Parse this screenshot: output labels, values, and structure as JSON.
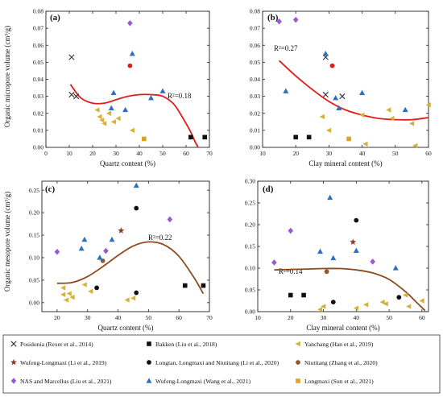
{
  "figure": {
    "background": "#ffffff",
    "trend_color": "#e21b1b",
    "trend_color_brown": "#8c4a1e"
  },
  "legend": [
    {
      "label": "Posidonia (Rexer et al., 2014)",
      "marker": "x",
      "color": "#333333"
    },
    {
      "label": "Bakken (Liu et al., 2018)",
      "marker": "square",
      "color": "#111111"
    },
    {
      "label": "Yanchang (Han et al., 2019)",
      "marker": "tri-left",
      "color": "#d4b23a"
    },
    {
      "label": "Wufeng-Longmaxi (Li et al., 2019)",
      "marker": "star",
      "color": "#8c3d2a"
    },
    {
      "label": "Longtan, Longmaxi and Niutitang (Li et al., 2020)",
      "marker": "circle",
      "color": "#111111"
    },
    {
      "label": "Niutitang (Zhang et al., 2020)",
      "marker": "circle",
      "color": "#8c5a2b"
    },
    {
      "label": "NAS and Marcellus (Liu et al., 2021)",
      "marker": "diamond",
      "color": "#9b59d0"
    },
    {
      "label": "Wufeng-Longmaxi (Wang et al., 2021)",
      "marker": "triangle",
      "color": "#2e6fbf"
    },
    {
      "label": "Longmaxi (Sun et al., 2021)",
      "marker": "square",
      "color": "#e0a020"
    }
  ],
  "chart_data": [
    {
      "panel": "(a)",
      "type": "scatter",
      "xlabel": "Quartz content (%)",
      "ylabel": "Organic micropore volume (cm³/g)",
      "xlim": [
        0,
        70
      ],
      "ylim": [
        0,
        0.08
      ],
      "xticks": [
        "0",
        "10",
        "20",
        "30",
        "40",
        "50",
        "60",
        "70"
      ],
      "yticks": [
        "0.00",
        "0.01",
        "0.02",
        "0.03",
        "0.04",
        "0.05",
        "0.06",
        "0.07",
        "0.08"
      ],
      "annotation": "R²=0.18",
      "trend_color": "#e21b1b",
      "trend_x": [
        10.5,
        15,
        20,
        25,
        30,
        35,
        40,
        45,
        50,
        55,
        60,
        62,
        64,
        66,
        68
      ],
      "trend_y": [
        0.037,
        0.029,
        0.026,
        0.026,
        0.028,
        0.03,
        0.031,
        0.031,
        0.03,
        0.025,
        0.014,
        0.009,
        0.003,
        -0.002,
        -0.007
      ],
      "points": [
        {
          "x": 11,
          "y": 0.053,
          "m": "x",
          "c": "#333333"
        },
        {
          "x": 11,
          "y": 0.031,
          "m": "x",
          "c": "#333333"
        },
        {
          "x": 13,
          "y": 0.03,
          "m": "x",
          "c": "#333333"
        },
        {
          "x": 62,
          "y": 0.006,
          "m": "square",
          "c": "#111111"
        },
        {
          "x": 68,
          "y": 0.006,
          "m": "square",
          "c": "#111111"
        },
        {
          "x": 22,
          "y": 0.022,
          "m": "tri-left",
          "c": "#d4b23a"
        },
        {
          "x": 23,
          "y": 0.018,
          "m": "tri-left",
          "c": "#d4b23a"
        },
        {
          "x": 24,
          "y": 0.016,
          "m": "tri-left",
          "c": "#d4b23a"
        },
        {
          "x": 25,
          "y": 0.014,
          "m": "tri-left",
          "c": "#d4b23a"
        },
        {
          "x": 27,
          "y": 0.02,
          "m": "tri-left",
          "c": "#d4b23a"
        },
        {
          "x": 29,
          "y": 0.015,
          "m": "tri-left",
          "c": "#d4b23a"
        },
        {
          "x": 31,
          "y": 0.017,
          "m": "tri-left",
          "c": "#d4b23a"
        },
        {
          "x": 37,
          "y": 0.01,
          "m": "tri-left",
          "c": "#d4b23a"
        },
        {
          "x": 36,
          "y": 0.048,
          "m": "circle",
          "c": "#e21b1b"
        },
        {
          "x": 36,
          "y": 0.073,
          "m": "diamond",
          "c": "#9b59d0"
        },
        {
          "x": 28,
          "y": 0.023,
          "m": "triangle",
          "c": "#2e6fbf"
        },
        {
          "x": 29,
          "y": 0.032,
          "m": "triangle",
          "c": "#2e6fbf"
        },
        {
          "x": 34,
          "y": 0.022,
          "m": "triangle",
          "c": "#2e6fbf"
        },
        {
          "x": 37,
          "y": 0.055,
          "m": "triangle",
          "c": "#2e6fbf"
        },
        {
          "x": 45,
          "y": 0.029,
          "m": "triangle",
          "c": "#2e6fbf"
        },
        {
          "x": 50,
          "y": 0.033,
          "m": "triangle",
          "c": "#2e6fbf"
        },
        {
          "x": 42,
          "y": 0.005,
          "m": "square",
          "c": "#e0a020"
        }
      ]
    },
    {
      "panel": "(b)",
      "type": "scatter",
      "xlabel": "Clay mineral content (%)",
      "ylabel": "",
      "xlim": [
        10,
        60
      ],
      "ylim": [
        0,
        0.08
      ],
      "xticks": [
        "10",
        "20",
        "30",
        "40",
        "50",
        "60"
      ],
      "yticks": [
        "0.00",
        "0.01",
        "0.02",
        "0.03",
        "0.04",
        "0.05",
        "0.06",
        "0.07",
        "0.08"
      ],
      "annotation": "R²=0.27",
      "trend_color": "#e21b1b",
      "trend_x": [
        15,
        20,
        25,
        30,
        35,
        40,
        45,
        50,
        55,
        60
      ],
      "trend_y": [
        0.051,
        0.042,
        0.034,
        0.027,
        0.022,
        0.019,
        0.017,
        0.0163,
        0.0163,
        0.0175
      ],
      "points": [
        {
          "x": 29,
          "y": 0.031,
          "m": "x",
          "c": "#333333"
        },
        {
          "x": 29,
          "y": 0.053,
          "m": "x",
          "c": "#333333"
        },
        {
          "x": 34,
          "y": 0.03,
          "m": "x",
          "c": "#333333"
        },
        {
          "x": 20,
          "y": 0.006,
          "m": "square",
          "c": "#111111"
        },
        {
          "x": 24,
          "y": 0.006,
          "m": "square",
          "c": "#111111"
        },
        {
          "x": 28,
          "y": 0.018,
          "m": "tri-left",
          "c": "#d4b23a"
        },
        {
          "x": 30,
          "y": 0.01,
          "m": "tri-left",
          "c": "#d4b23a"
        },
        {
          "x": 40,
          "y": 0.019,
          "m": "tri-left",
          "c": "#d4b23a"
        },
        {
          "x": 41,
          "y": 0.002,
          "m": "tri-left",
          "c": "#d4b23a"
        },
        {
          "x": 48,
          "y": 0.022,
          "m": "tri-left",
          "c": "#d4b23a"
        },
        {
          "x": 49,
          "y": 0.017,
          "m": "tri-left",
          "c": "#d4b23a"
        },
        {
          "x": 55,
          "y": 0.014,
          "m": "tri-left",
          "c": "#d4b23a"
        },
        {
          "x": 56,
          "y": 0.001,
          "m": "tri-left",
          "c": "#d4b23a"
        },
        {
          "x": 60,
          "y": 0.025,
          "m": "tri-left",
          "c": "#d4b23a"
        },
        {
          "x": 31,
          "y": 0.048,
          "m": "circle",
          "c": "#e21b1b"
        },
        {
          "x": 15,
          "y": 0.074,
          "m": "diamond",
          "c": "#9b59d0"
        },
        {
          "x": 20,
          "y": 0.075,
          "m": "diamond",
          "c": "#9b59d0"
        },
        {
          "x": 17,
          "y": 0.033,
          "m": "triangle",
          "c": "#2e6fbf"
        },
        {
          "x": 29,
          "y": 0.055,
          "m": "triangle",
          "c": "#2e6fbf"
        },
        {
          "x": 32,
          "y": 0.029,
          "m": "triangle",
          "c": "#2e6fbf"
        },
        {
          "x": 33,
          "y": 0.023,
          "m": "triangle",
          "c": "#2e6fbf"
        },
        {
          "x": 40,
          "y": 0.032,
          "m": "triangle",
          "c": "#2e6fbf"
        },
        {
          "x": 53,
          "y": 0.022,
          "m": "triangle",
          "c": "#2e6fbf"
        },
        {
          "x": 36,
          "y": 0.005,
          "m": "square",
          "c": "#e0a020"
        }
      ]
    },
    {
      "panel": "(c)",
      "type": "scatter",
      "xlabel": "Quartz content (%)",
      "ylabel": "Organic mesopore volume (cm³/g)",
      "xlim": [
        15,
        70
      ],
      "ylim": [
        -0.02,
        0.27
      ],
      "xticks": [
        "20",
        "30",
        "40",
        "50",
        "60",
        "70"
      ],
      "yticks": [
        "0.00",
        "0.05",
        "0.10",
        "0.15",
        "0.20",
        "0.25"
      ],
      "annotation": "R²=0.22",
      "trend_color": "#8c4a1e",
      "trend_x": [
        20,
        25,
        30,
        35,
        40,
        45,
        50,
        55,
        60,
        65,
        68
      ],
      "trend_y": [
        0.043,
        0.045,
        0.058,
        0.08,
        0.105,
        0.126,
        0.135,
        0.129,
        0.103,
        0.055,
        0.02
      ],
      "points": [
        {
          "x": 62,
          "y": 0.038,
          "m": "square",
          "c": "#111111"
        },
        {
          "x": 68,
          "y": 0.038,
          "m": "square",
          "c": "#111111"
        },
        {
          "x": 22,
          "y": 0.033,
          "m": "tri-left",
          "c": "#d4b23a"
        },
        {
          "x": 22,
          "y": 0.018,
          "m": "tri-left",
          "c": "#d4b23a"
        },
        {
          "x": 23,
          "y": 0.006,
          "m": "tri-left",
          "c": "#d4b23a"
        },
        {
          "x": 24,
          "y": 0.02,
          "m": "tri-left",
          "c": "#d4b23a"
        },
        {
          "x": 25,
          "y": 0.012,
          "m": "tri-left",
          "c": "#d4b23a"
        },
        {
          "x": 29,
          "y": 0.04,
          "m": "tri-left",
          "c": "#d4b23a"
        },
        {
          "x": 31,
          "y": 0.025,
          "m": "tri-left",
          "c": "#d4b23a"
        },
        {
          "x": 43,
          "y": 0.006,
          "m": "tri-left",
          "c": "#d4b23a"
        },
        {
          "x": 45,
          "y": 0.01,
          "m": "tri-left",
          "c": "#d4b23a"
        },
        {
          "x": 41,
          "y": 0.16,
          "m": "star",
          "c": "#8c3d2a"
        },
        {
          "x": 33,
          "y": 0.033,
          "m": "circle",
          "c": "#111111"
        },
        {
          "x": 46,
          "y": 0.21,
          "m": "circle",
          "c": "#111111"
        },
        {
          "x": 46,
          "y": 0.022,
          "m": "circle",
          "c": "#111111"
        },
        {
          "x": 35,
          "y": 0.093,
          "m": "circle",
          "c": "#8c5a2b"
        },
        {
          "x": 20,
          "y": 0.113,
          "m": "diamond",
          "c": "#9b59d0"
        },
        {
          "x": 36,
          "y": 0.115,
          "m": "diamond",
          "c": "#9b59d0"
        },
        {
          "x": 57,
          "y": 0.185,
          "m": "diamond",
          "c": "#9b59d0"
        },
        {
          "x": 28,
          "y": 0.12,
          "m": "triangle",
          "c": "#2e6fbf"
        },
        {
          "x": 29,
          "y": 0.14,
          "m": "triangle",
          "c": "#2e6fbf"
        },
        {
          "x": 34,
          "y": 0.1,
          "m": "triangle",
          "c": "#2e6fbf"
        },
        {
          "x": 38,
          "y": 0.14,
          "m": "triangle",
          "c": "#2e6fbf"
        },
        {
          "x": 46,
          "y": 0.26,
          "m": "triangle",
          "c": "#2e6fbf"
        }
      ]
    },
    {
      "panel": "(d)",
      "type": "scatter",
      "xlabel": "Clay mineral content (%)",
      "ylabel": "",
      "xlim": [
        10,
        62
      ],
      "ylim": [
        0,
        0.3
      ],
      "xticks": [
        "10",
        "20",
        "30",
        "40",
        "50",
        "60"
      ],
      "yticks": [
        "0.00",
        "0.05",
        "0.10",
        "0.15",
        "0.20",
        "0.25",
        "0.30"
      ],
      "annotation": "R²=0.14",
      "trend_color": "#8c4a1e",
      "trend_x": [
        15,
        20,
        25,
        30,
        35,
        40,
        45,
        50,
        55,
        58,
        61
      ],
      "trend_y": [
        0.096,
        0.097,
        0.098,
        0.099,
        0.099,
        0.096,
        0.089,
        0.074,
        0.046,
        0.024,
        0.002
      ],
      "points": [
        {
          "x": 20,
          "y": 0.038,
          "m": "square",
          "c": "#111111"
        },
        {
          "x": 24,
          "y": 0.038,
          "m": "square",
          "c": "#111111"
        },
        {
          "x": 29,
          "y": 0.005,
          "m": "tri-left",
          "c": "#d4b23a"
        },
        {
          "x": 30,
          "y": 0.012,
          "m": "tri-left",
          "c": "#d4b23a"
        },
        {
          "x": 40,
          "y": 0.008,
          "m": "tri-left",
          "c": "#d4b23a"
        },
        {
          "x": 43,
          "y": 0.016,
          "m": "tri-left",
          "c": "#d4b23a"
        },
        {
          "x": 48,
          "y": 0.022,
          "m": "tri-left",
          "c": "#d4b23a"
        },
        {
          "x": 49,
          "y": 0.018,
          "m": "tri-left",
          "c": "#d4b23a"
        },
        {
          "x": 55,
          "y": 0.038,
          "m": "tri-left",
          "c": "#d4b23a"
        },
        {
          "x": 56,
          "y": 0.012,
          "m": "tri-left",
          "c": "#d4b23a"
        },
        {
          "x": 60,
          "y": 0.025,
          "m": "tri-left",
          "c": "#d4b23a"
        },
        {
          "x": 39,
          "y": 0.16,
          "m": "star",
          "c": "#8c3d2a"
        },
        {
          "x": 31,
          "y": 0.092,
          "m": "circle",
          "c": "#8c5a2b"
        },
        {
          "x": 33,
          "y": 0.022,
          "m": "circle",
          "c": "#111111"
        },
        {
          "x": 40,
          "y": 0.21,
          "m": "circle",
          "c": "#111111"
        },
        {
          "x": 53,
          "y": 0.033,
          "m": "circle",
          "c": "#111111"
        },
        {
          "x": 15,
          "y": 0.113,
          "m": "diamond",
          "c": "#9b59d0"
        },
        {
          "x": 20,
          "y": 0.186,
          "m": "diamond",
          "c": "#9b59d0"
        },
        {
          "x": 45,
          "y": 0.115,
          "m": "diamond",
          "c": "#9b59d0"
        },
        {
          "x": 29,
          "y": 0.138,
          "m": "triangle",
          "c": "#2e6fbf"
        },
        {
          "x": 32,
          "y": 0.262,
          "m": "triangle",
          "c": "#2e6fbf"
        },
        {
          "x": 33,
          "y": 0.123,
          "m": "triangle",
          "c": "#2e6fbf"
        },
        {
          "x": 40,
          "y": 0.14,
          "m": "triangle",
          "c": "#2e6fbf"
        },
        {
          "x": 52,
          "y": 0.1,
          "m": "triangle",
          "c": "#2e6fbf"
        }
      ]
    }
  ]
}
